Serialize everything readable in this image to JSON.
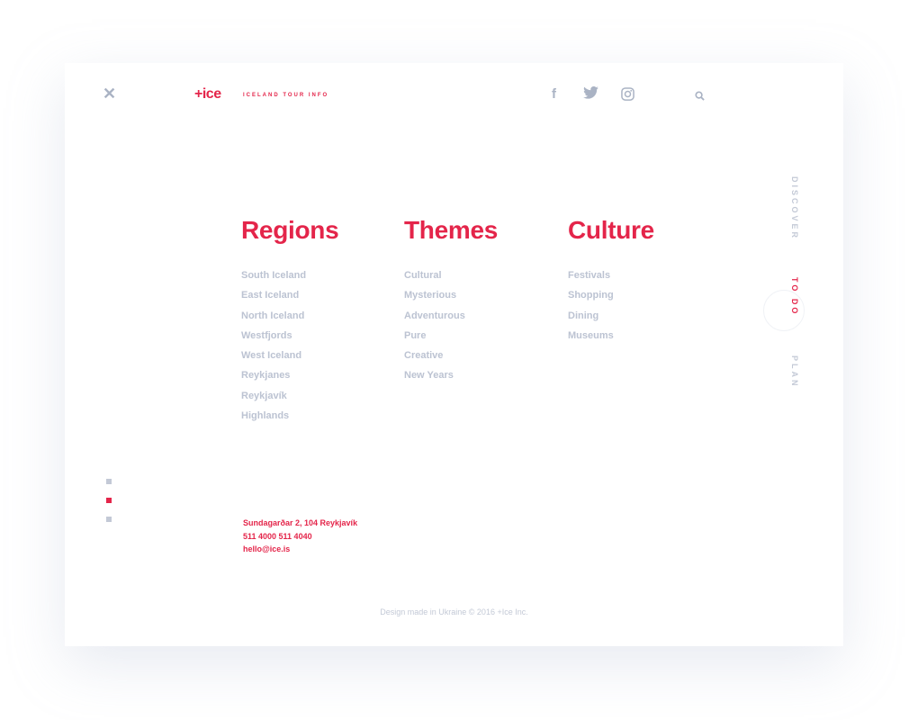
{
  "header": {
    "close_icon": "close-icon",
    "logo": "+ice",
    "tagline": "ICELAND TOUR INFO",
    "social": [
      "facebook-icon",
      "twitter-icon",
      "instagram-icon"
    ],
    "search_icon": "search-icon"
  },
  "columns": [
    {
      "title": "Regions",
      "items": [
        "South Iceland",
        "East Iceland",
        "North Iceland",
        "Westfjords",
        "West Iceland",
        "Reykjanes",
        "Reykjavík",
        "Highlands"
      ]
    },
    {
      "title": "Themes",
      "items": [
        "Cultural",
        "Mysterious",
        "Adventurous",
        "Pure",
        "Creative",
        "New Years"
      ]
    },
    {
      "title": "Culture",
      "items": [
        "Festivals",
        "Shopping",
        "Dining",
        "Museums"
      ]
    }
  ],
  "side_nav": [
    {
      "label": "DISCOVER",
      "active": false
    },
    {
      "label": "TO DO",
      "active": true
    },
    {
      "label": "PLAN",
      "active": false
    }
  ],
  "pager": {
    "count": 3,
    "active": 2
  },
  "contact": {
    "address": "Sundagarðar 2, 104 Reykjavík",
    "phone": "511 4000 511 4040",
    "email": "hello@ice.is"
  },
  "footer": "Design made in Ukraine © 2016 +Ice Inc.",
  "colors": {
    "accent": "#e4254a",
    "muted": "#bcc3d2"
  }
}
